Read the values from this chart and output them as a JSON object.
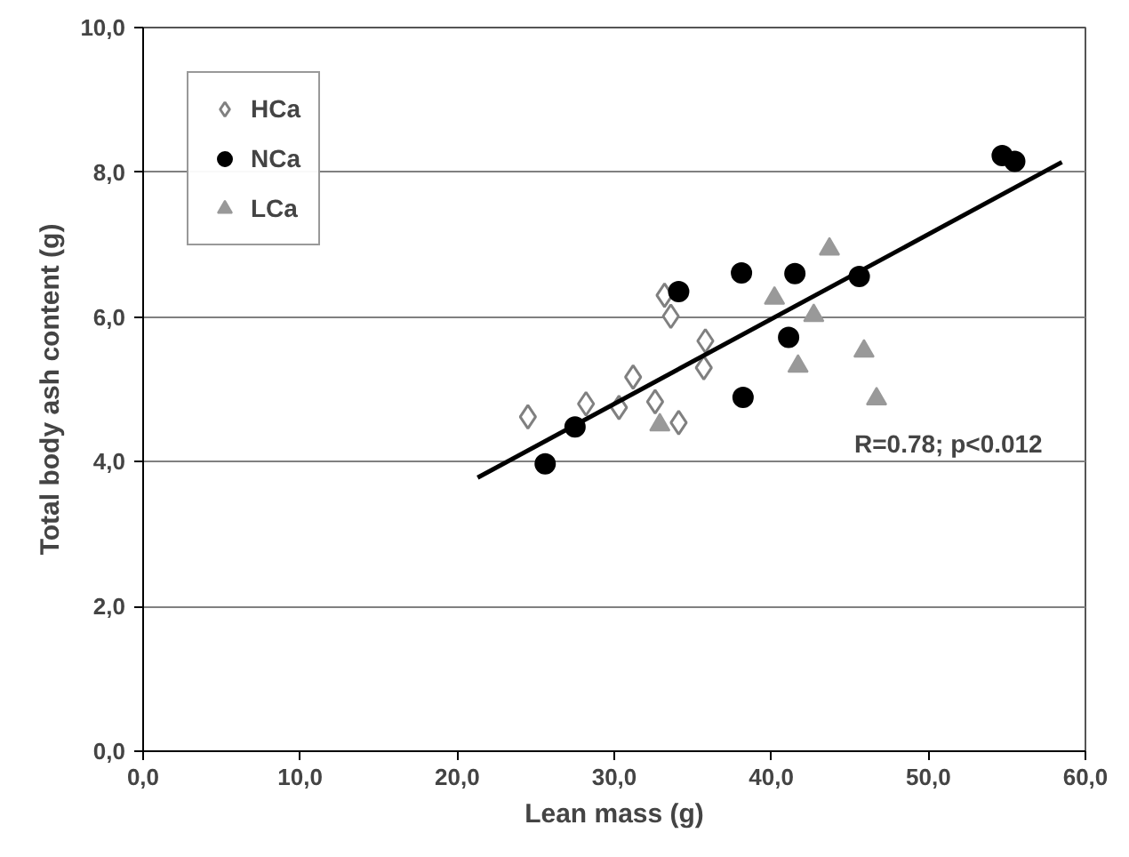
{
  "chart_data": {
    "type": "scatter",
    "xlabel": "Lean mass (g)",
    "ylabel": "Total body ash content (g)",
    "xlim": [
      0,
      60
    ],
    "ylim": [
      0,
      10
    ],
    "xticks": [
      {
        "value": 0,
        "label": "0,0"
      },
      {
        "value": 10,
        "label": "10,0"
      },
      {
        "value": 20,
        "label": "20,0"
      },
      {
        "value": 30,
        "label": "30,0"
      },
      {
        "value": 40,
        "label": "40,0"
      },
      {
        "value": 50,
        "label": "50,0"
      },
      {
        "value": 60,
        "label": "60,0"
      }
    ],
    "yticks": [
      {
        "value": 0,
        "label": "0,0"
      },
      {
        "value": 2,
        "label": "2,0"
      },
      {
        "value": 4,
        "label": "4,0"
      },
      {
        "value": 6,
        "label": "6,0"
      },
      {
        "value": 8,
        "label": "8,0"
      },
      {
        "value": 10,
        "label": "10,0"
      }
    ],
    "grid": "y",
    "legend": "top left",
    "series": [
      {
        "name": "HCa",
        "marker": "diamond",
        "color": "#808080",
        "x": [
          24.5,
          28.2,
          30.3,
          31.2,
          32.6,
          34.1,
          33.2,
          33.6,
          35.8,
          35.7
        ],
        "values": [
          4.62,
          4.8,
          4.75,
          5.17,
          4.83,
          4.54,
          6.3,
          6.01,
          5.67,
          5.3
        ]
      },
      {
        "name": "NCa",
        "marker": "circle",
        "color": "#000000",
        "x": [
          25.6,
          27.5,
          34.1,
          38.1,
          38.2,
          41.5,
          41.1,
          45.6,
          54.7,
          55.5
        ],
        "values": [
          3.97,
          4.48,
          6.35,
          6.61,
          4.89,
          6.6,
          5.72,
          6.56,
          8.23,
          8.15
        ]
      },
      {
        "name": "LCa",
        "marker": "triangle",
        "color": "#999999",
        "x": [
          32.9,
          40.2,
          43.7,
          42.7,
          41.7,
          45.9,
          46.7
        ],
        "values": [
          4.51,
          6.26,
          6.94,
          6.02,
          5.32,
          5.53,
          4.87
        ]
      },
      {
        "type": "line",
        "color": "#000000",
        "x": [
          21.3,
          58.5
        ],
        "values": [
          3.78,
          8.14
        ]
      }
    ],
    "annotations": [
      "R=0.78; p<0.012"
    ]
  }
}
